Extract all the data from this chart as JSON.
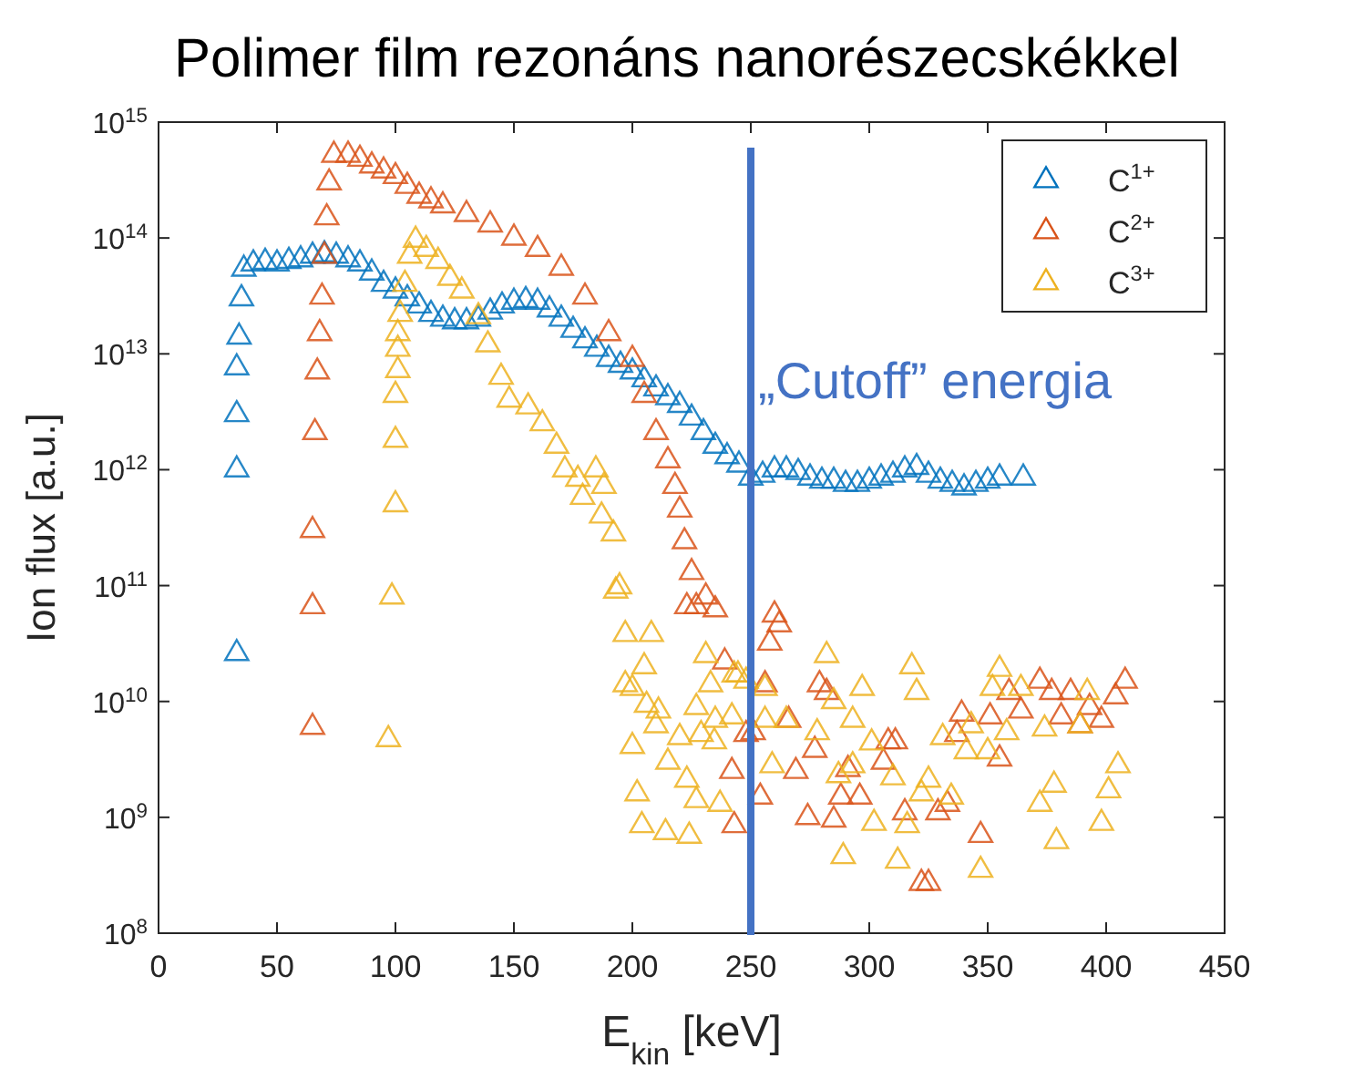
{
  "chart_data": {
    "type": "scatter",
    "title": "Polimer film rezonáns nanorészecskékkel",
    "xlabel": "E$_{kin}$ [keV]",
    "ylabel": "Ion flux [a.u.]",
    "xlim": [
      0,
      450
    ],
    "xticks": [
      0,
      50,
      100,
      150,
      200,
      250,
      300,
      350,
      400,
      450
    ],
    "ylim": [
      100000000.0,
      1000000000000000.0
    ],
    "yticks": [
      {
        "value": 100000000.0,
        "label": "10$^{8}$"
      },
      {
        "value": 1000000000.0,
        "label": "10$^{9}$"
      },
      {
        "value": 10000000000.0,
        "label": "10$^{10}$"
      },
      {
        "value": 100000000000.0,
        "label": "10$^{11}$"
      },
      {
        "value": 1000000000000.0,
        "label": "10$^{12}$"
      },
      {
        "value": 10000000000000.0,
        "label": "10$^{13}$"
      },
      {
        "value": 100000000000000.0,
        "label": "10$^{14}$"
      },
      {
        "value": 1000000000000000.0,
        "label": "10$^{15}$"
      }
    ],
    "log": "y",
    "grid": false,
    "legend": "top right",
    "marker": "triangle",
    "ref_lines": [
      {
        "axis": "x",
        "value": 250,
        "label": "„Cutoff” energia",
        "color": "#4472c4"
      }
    ],
    "series": [
      {
        "name": "C$^{1+}$",
        "color": "#0072bd",
        "x": [
          33,
          33,
          33,
          33,
          34,
          35,
          36,
          40,
          45,
          50,
          55,
          60,
          65,
          70,
          75,
          80,
          85,
          90,
          95,
          100,
          105,
          110,
          115,
          120,
          125,
          130,
          135,
          140,
          145,
          150,
          155,
          160,
          165,
          170,
          175,
          180,
          185,
          190,
          195,
          200,
          205,
          210,
          215,
          220,
          225,
          230,
          235,
          240,
          245,
          250,
          255,
          260,
          265,
          270,
          275,
          280,
          285,
          290,
          295,
          300,
          305,
          310,
          315,
          320,
          325,
          330,
          335,
          340,
          345,
          350,
          355,
          365
        ],
        "values": [
          26000000000.0,
          1000000000000.0,
          3000000000000.0,
          7600000000000.0,
          14000000000000.0,
          30000000000000.0,
          54000000000000.0,
          60000000000000.0,
          62000000000000.0,
          60000000000000.0,
          63000000000000.0,
          65000000000000.0,
          70000000000000.0,
          72000000000000.0,
          70000000000000.0,
          65000000000000.0,
          60000000000000.0,
          50000000000000.0,
          40000000000000.0,
          35000000000000.0,
          30000000000000.0,
          26000000000000.0,
          22000000000000.0,
          20000000000000.0,
          19000000000000.0,
          19000000000000.0,
          20000000000000.0,
          23000000000000.0,
          26000000000000.0,
          28000000000000.0,
          29000000000000.0,
          28000000000000.0,
          24000000000000.0,
          20000000000000.0,
          16000000000000.0,
          13000000000000.0,
          11000000000000.0,
          9000000000000.0,
          8000000000000.0,
          7000000000000.0,
          6000000000000.0,
          5000000000000.0,
          4200000000000.0,
          3600000000000.0,
          2800000000000.0,
          2100000000000.0,
          1600000000000.0,
          1300000000000.0,
          1100000000000.0,
          850000000000.0,
          900000000000.0,
          1000000000000.0,
          1000000000000.0,
          950000000000.0,
          850000000000.0,
          800000000000.0,
          800000000000.0,
          750000000000.0,
          750000000000.0,
          800000000000.0,
          850000000000.0,
          900000000000.0,
          1000000000000.0,
          1050000000000.0,
          900000000000.0,
          800000000000.0,
          750000000000.0,
          700000000000.0,
          750000000000.0,
          800000000000.0,
          850000000000.0,
          850000000000.0
        ]
      },
      {
        "name": "C$^{2+}$",
        "color": "#d95319",
        "x": [
          65,
          65,
          65,
          66,
          67,
          68,
          69,
          70,
          71,
          72,
          74,
          80,
          85,
          90,
          95,
          100,
          105,
          110,
          115,
          120,
          130,
          140,
          150,
          160,
          170,
          180,
          190,
          200,
          205,
          210,
          215,
          218,
          220,
          222,
          225,
          223,
          227,
          231,
          235,
          239,
          242,
          243,
          248,
          251,
          254,
          256,
          258,
          260,
          262,
          266,
          269,
          274,
          277,
          279,
          282,
          285,
          288,
          291,
          296,
          306,
          308,
          311,
          315,
          322,
          325,
          329,
          333,
          337,
          339,
          347,
          351,
          355,
          359,
          364,
          372,
          377,
          381,
          385,
          389,
          393,
          398,
          404,
          408
        ],
        "values": [
          6000000000.0,
          66000000000.0,
          300000000000.0,
          2100000000000.0,
          7000000000000.0,
          15000000000000.0,
          31000000000000.0,
          70000000000000.0,
          150000000000000.0,
          300000000000000.0,
          520000000000000.0,
          520000000000000.0,
          480000000000000.0,
          420000000000000.0,
          380000000000000.0,
          340000000000000.0,
          280000000000000.0,
          230000000000000.0,
          210000000000000.0,
          190000000000000.0,
          160000000000000.0,
          130000000000000.0,
          100000000000000.0,
          80000000000000.0,
          55000000000000.0,
          31000000000000.0,
          15000000000000.0,
          9000000000000.0,
          4400000000000.0,
          2100000000000.0,
          1200000000000.0,
          720000000000.0,
          450000000000.0,
          240000000000.0,
          130000000000.0,
          66000000000.0,
          66000000000.0,
          80000000000.0,
          62000000000.0,
          22000000000.0,
          2500000000.0,
          850000000.0,
          5200000000.0,
          5400000000.0,
          1500000000.0,
          14000000000.0,
          32000000000.0,
          56000000000.0,
          46000000000.0,
          6900000000.0,
          2500000000.0,
          1000000000.0,
          3800000000.0,
          14000000000.0,
          12000000000.0,
          950000000.0,
          1500000000.0,
          2600000000.0,
          1500000000.0,
          3000000000.0,
          4500000000.0,
          4500000000.0,
          1100000000.0,
          270000000.0,
          270000000.0,
          1100000000.0,
          1300000000.0,
          5200000000.0,
          7800000000.0,
          700000000.0,
          7400000000.0,
          3200000000.0,
          12000000000.0,
          8300000000.0,
          15000000000.0,
          12000000000.0,
          7400000000.0,
          12000000000.0,
          6200000000.0,
          8900000000.0,
          6900000000.0,
          11000000000.0,
          15000000000.0
        ]
      },
      {
        "name": "C$^{3+}$",
        "color": "#edb120",
        "x": [
          97,
          98.5,
          100,
          100,
          100,
          101,
          101,
          101,
          102,
          104,
          106,
          108.5,
          113,
          118,
          123,
          128,
          135,
          139,
          144.6,
          148,
          156,
          162,
          168,
          171.5,
          177,
          179,
          184.6,
          188,
          187,
          192,
          193,
          194.6,
          197,
          197,
          200,
          200,
          202,
          204,
          205,
          206,
          208,
          210,
          211,
          214,
          215,
          220,
          223,
          224,
          227,
          227,
          229,
          231,
          233,
          234.6,
          235,
          237,
          242,
          243,
          244.6,
          248,
          256,
          256,
          259,
          265,
          278,
          282,
          285,
          287,
          289,
          293,
          293,
          297,
          301,
          302,
          310,
          312,
          316,
          318,
          320,
          322,
          325,
          331,
          334.6,
          341,
          343,
          347,
          350,
          352,
          355,
          358,
          364,
          372,
          374,
          378,
          379,
          389,
          392,
          398,
          401,
          405
        ],
        "values": [
          4700000000.0,
          80000000000.0,
          500000000000.0,
          1800000000000.0,
          4400000000000.0,
          7200000000000.0,
          11000000000000.0,
          15000000000000.0,
          22000000000000.0,
          40000000000000.0,
          70000000000000.0,
          96000000000000.0,
          80000000000000.0,
          63000000000000.0,
          45000000000000.0,
          35000000000000.0,
          21000000000000.0,
          12000000000000.0,
          6300000000000.0,
          4000000000000.0,
          3500000000000.0,
          2500000000000.0,
          1600000000000.0,
          1000000000000.0,
          830000000000.0,
          580000000000.0,
          1000000000000.0,
          720000000000.0,
          400000000000.0,
          280000000000.0,
          90000000000.0,
          98000000000.0,
          38000000000.0,
          14000000000.0,
          13000000000.0,
          4100000000.0,
          1600000000.0,
          850000000.0,
          20000000000.0,
          9300000000.0,
          38000000000.0,
          6200000000.0,
          8300000000.0,
          740000000.0,
          3000000000.0,
          4900000000.0,
          2100000000.0,
          690000000.0,
          1400000000.0,
          8900000000.0,
          5200000000.0,
          25000000000.0,
          14000000000.0,
          4500000000.0,
          6900000000.0,
          1300000000.0,
          7400000000.0,
          17000000000.0,
          17000000000.0,
          15000000000.0,
          13000000000.0,
          6900000000.0,
          2800000000.0,
          6900000000.0,
          5400000000.0,
          25000000000.0,
          10000000000.0,
          2300000000.0,
          460000000.0,
          6900000000.0,
          2800000000.0,
          13000000000.0,
          4400000000.0,
          890000000.0,
          2200000000.0,
          420000000.0,
          850000000.0,
          20000000000.0,
          12000000000.0,
          1600000000.0,
          2100000000.0,
          4900000000.0,
          1500000000.0,
          3700000000.0,
          6200000000.0,
          350000000.0,
          3700000000.0,
          13000000000.0,
          19000000000.0,
          5400000000.0,
          13000000000.0,
          1300000000.0,
          5800000000.0,
          1900000000.0,
          620000000.0,
          6200000000.0,
          12000000000.0,
          890000000.0,
          1700000000.0,
          2800000000.0
        ]
      }
    ]
  }
}
